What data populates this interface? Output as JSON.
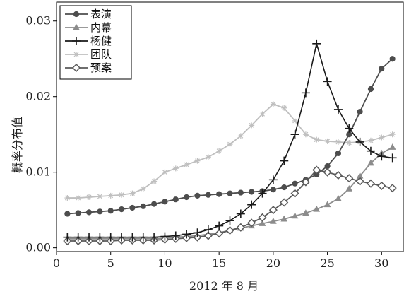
{
  "chart_data": {
    "type": "line",
    "xlabel": "2012 年 8 月",
    "ylabel": "概率分布值",
    "xlim": [
      0,
      32
    ],
    "ylim": [
      -0.0005,
      0.0325
    ],
    "xticks": [
      0,
      5,
      10,
      15,
      20,
      25,
      30
    ],
    "yticks": [
      0.0,
      0.01,
      0.02,
      0.03
    ],
    "ytick_labels": [
      "0.00",
      "0.01",
      "0.02",
      "0.03"
    ],
    "grid": false,
    "legend_position": "top-left",
    "x": [
      1,
      2,
      3,
      4,
      5,
      6,
      7,
      8,
      9,
      10,
      11,
      12,
      13,
      14,
      15,
      16,
      17,
      18,
      19,
      20,
      21,
      22,
      23,
      24,
      25,
      26,
      27,
      28,
      29,
      30,
      31
    ],
    "series": [
      {
        "name": "表演",
        "marker": "circle",
        "color": "#4d4d4d",
        "values": [
          0.0045,
          0.0046,
          0.0047,
          0.0048,
          0.0049,
          0.0051,
          0.0053,
          0.0055,
          0.0058,
          0.0061,
          0.0064,
          0.0067,
          0.0069,
          0.007,
          0.0071,
          0.0072,
          0.0073,
          0.0074,
          0.0075,
          0.0077,
          0.008,
          0.0085,
          0.009,
          0.0097,
          0.0108,
          0.0125,
          0.015,
          0.018,
          0.021,
          0.0237,
          0.025
        ]
      },
      {
        "name": "内幕",
        "marker": "triangle",
        "color": "#8c8c8c",
        "values": [
          0.0012,
          0.0012,
          0.0012,
          0.0012,
          0.0012,
          0.0012,
          0.0012,
          0.0012,
          0.0012,
          0.0013,
          0.0014,
          0.0015,
          0.0016,
          0.0018,
          0.002,
          0.0023,
          0.0026,
          0.0029,
          0.0032,
          0.0035,
          0.0038,
          0.0042,
          0.0046,
          0.0051,
          0.0057,
          0.0065,
          0.0078,
          0.0095,
          0.0112,
          0.0125,
          0.0133
        ]
      },
      {
        "name": "杨健",
        "marker": "plus",
        "color": "#1a1a1a",
        "values": [
          0.0014,
          0.0014,
          0.0014,
          0.0014,
          0.0014,
          0.0014,
          0.0014,
          0.0014,
          0.0014,
          0.0015,
          0.0016,
          0.0018,
          0.002,
          0.0024,
          0.0029,
          0.0036,
          0.0045,
          0.0057,
          0.0072,
          0.009,
          0.0115,
          0.015,
          0.0205,
          0.027,
          0.022,
          0.0183,
          0.0158,
          0.014,
          0.0128,
          0.0121,
          0.0119
        ]
      },
      {
        "name": "团队",
        "marker": "star",
        "color": "#bfbfbf",
        "values": [
          0.0066,
          0.0066,
          0.0067,
          0.0068,
          0.0069,
          0.007,
          0.0072,
          0.0078,
          0.0088,
          0.01,
          0.0105,
          0.011,
          0.0115,
          0.012,
          0.0128,
          0.0137,
          0.0148,
          0.0162,
          0.0177,
          0.019,
          0.0185,
          0.0168,
          0.015,
          0.0143,
          0.0141,
          0.014,
          0.0139,
          0.014,
          0.0142,
          0.0146,
          0.015
        ]
      },
      {
        "name": "预案",
        "marker": "diamond",
        "color": "#5a5a5a",
        "values": [
          0.0009,
          0.0009,
          0.0009,
          0.0009,
          0.0009,
          0.001,
          0.001,
          0.001,
          0.001,
          0.0011,
          0.0012,
          0.0013,
          0.0014,
          0.0016,
          0.0019,
          0.0023,
          0.0027,
          0.0033,
          0.004,
          0.005,
          0.006,
          0.0072,
          0.0087,
          0.0103,
          0.01,
          0.0096,
          0.0092,
          0.0088,
          0.0085,
          0.0082,
          0.0079
        ]
      }
    ]
  }
}
